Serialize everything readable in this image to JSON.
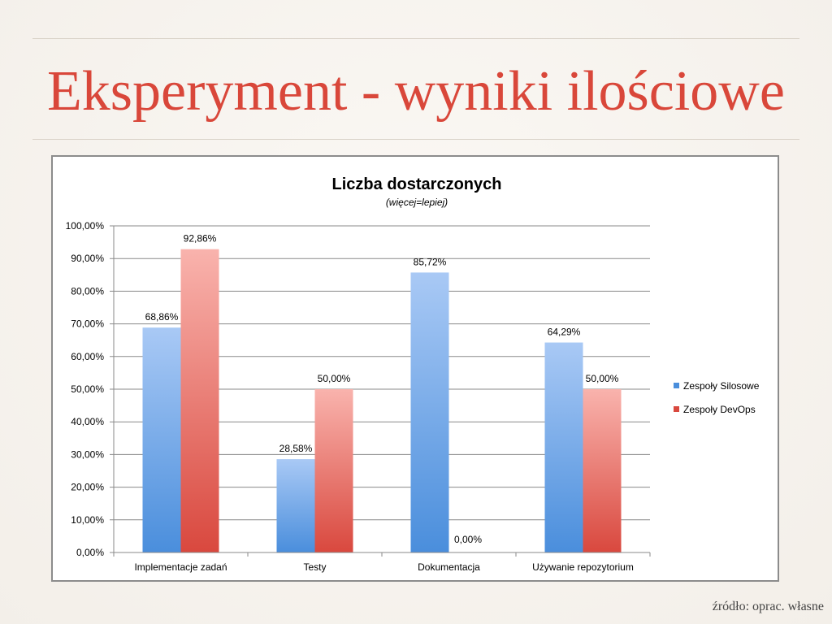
{
  "slide": {
    "title": "Eksperyment - wyniki ilościowe",
    "source": "źródło: oprac. własne"
  },
  "colors": {
    "title": "#d9473a",
    "series_silosowe_top": "#a9c9f5",
    "series_silosowe_bottom": "#4a8edc",
    "series_devops_top": "#f9b3ad",
    "series_devops_bottom": "#d9483e"
  },
  "chart_data": {
    "type": "bar",
    "title": "Liczba dostarczonych",
    "subtitle": "(więcej=lepiej)",
    "categories": [
      "Implementacje zadań",
      "Testy",
      "Dokumentacja",
      "Używanie repozytorium"
    ],
    "series": [
      {
        "name": "Zespoły Silosowe",
        "values": [
          68.86,
          28.58,
          85.72,
          64.29
        ],
        "labels": [
          "68,86%",
          "28,58%",
          "85,72%",
          "64,29%"
        ]
      },
      {
        "name": "Zespoły DevOps",
        "values": [
          92.86,
          50.0,
          0.0,
          50.0
        ],
        "labels": [
          "92,86%",
          "50,00%",
          "0,00%",
          "50,00%"
        ]
      }
    ],
    "ylim": [
      0,
      100
    ],
    "yticks": [
      "0,00%",
      "10,00%",
      "20,00%",
      "30,00%",
      "40,00%",
      "50,00%",
      "60,00%",
      "70,00%",
      "80,00%",
      "90,00%",
      "100,00%"
    ],
    "grid": true,
    "legend_position": "right"
  }
}
